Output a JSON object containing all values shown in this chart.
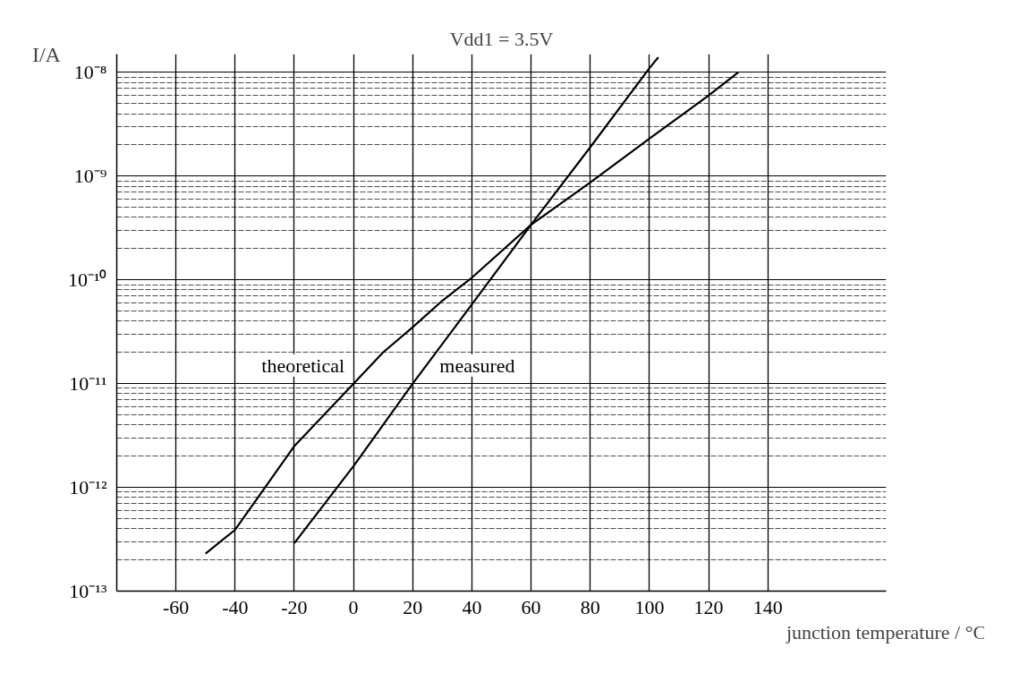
{
  "chart_data": {
    "type": "line",
    "title": "Vdd1 = 3.5V",
    "xlabel": "junction temperature / °C",
    "ylabel": "I/A",
    "series": [
      {
        "name": "theoretical",
        "color": "#000000",
        "x": [
          -50,
          -40,
          -20,
          0,
          10,
          20,
          30,
          40,
          60,
          80,
          100,
          120,
          130
        ],
        "values": [
          2.3e-13,
          3.9e-13,
          2.5e-12,
          1e-11,
          2e-11,
          3.5e-11,
          6.3e-11,
          1.05e-10,
          3.4e-10,
          8.7e-10,
          2.3e-09,
          6e-09,
          1e-08
        ]
      },
      {
        "name": "measured",
        "color": "#000000",
        "x": [
          -20,
          0,
          20,
          40,
          60,
          80,
          100,
          103
        ],
        "values": [
          2.9e-13,
          1.6e-12,
          1e-11,
          5.8e-11,
          3.4e-10,
          1.9e-09,
          1.1e-08,
          1.4e-08
        ]
      }
    ],
    "log": "y",
    "grid": true,
    "line_style": "solid",
    "marker": "none",
    "xlim": [
      -80,
      180
    ],
    "xticks": [
      -60,
      -40,
      -20,
      0,
      20,
      40,
      60,
      80,
      100,
      120,
      140
    ],
    "ylim": [
      1e-13,
      1.5e-08
    ],
    "yticks": [
      {
        "value": 1e-13,
        "label": "10⁻¹³"
      },
      {
        "value": 1e-12,
        "label": "10⁻¹²"
      },
      {
        "value": 1e-11,
        "label": "10⁻¹¹"
      },
      {
        "value": 1e-10,
        "label": "10⁻¹⁰"
      },
      {
        "value": 1e-09,
        "label": "10⁻⁹"
      },
      {
        "value": 1e-08,
        "label": "10⁻⁸"
      }
    ]
  }
}
